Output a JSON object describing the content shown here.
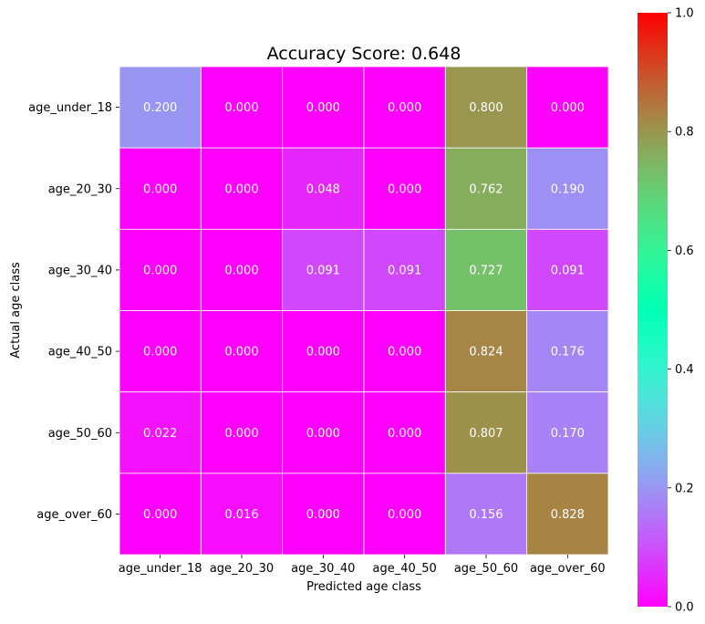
{
  "chart_data": {
    "type": "heatmap",
    "title": "Accuracy Score: 0.648",
    "xlabel": "Predicted age class",
    "ylabel": "Actual age class",
    "x_categories": [
      "age_under_18",
      "age_20_30",
      "age_30_40",
      "age_40_50",
      "age_50_60",
      "age_over_60"
    ],
    "y_categories": [
      "age_under_18",
      "age_20_30",
      "age_30_40",
      "age_40_50",
      "age_50_60",
      "age_over_60"
    ],
    "values": [
      [
        0.2,
        0.0,
        0.0,
        0.0,
        0.8,
        0.0
      ],
      [
        0.0,
        0.0,
        0.048,
        0.0,
        0.762,
        0.19
      ],
      [
        0.0,
        0.0,
        0.091,
        0.091,
        0.727,
        0.091
      ],
      [
        0.0,
        0.0,
        0.0,
        0.0,
        0.824,
        0.176
      ],
      [
        0.022,
        0.0,
        0.0,
        0.0,
        0.807,
        0.17
      ],
      [
        0.0,
        0.016,
        0.0,
        0.0,
        0.156,
        0.828
      ]
    ],
    "value_format": "0.000",
    "colormap": "rainbow",
    "vmin": 0.0,
    "vmax": 1.0,
    "colorbar_ticks": [
      "0.0",
      "0.2",
      "0.4",
      "0.6",
      "0.8",
      "1.0"
    ],
    "cell_text_color": "#ffffff",
    "grid_line_color": "#ffffff"
  }
}
